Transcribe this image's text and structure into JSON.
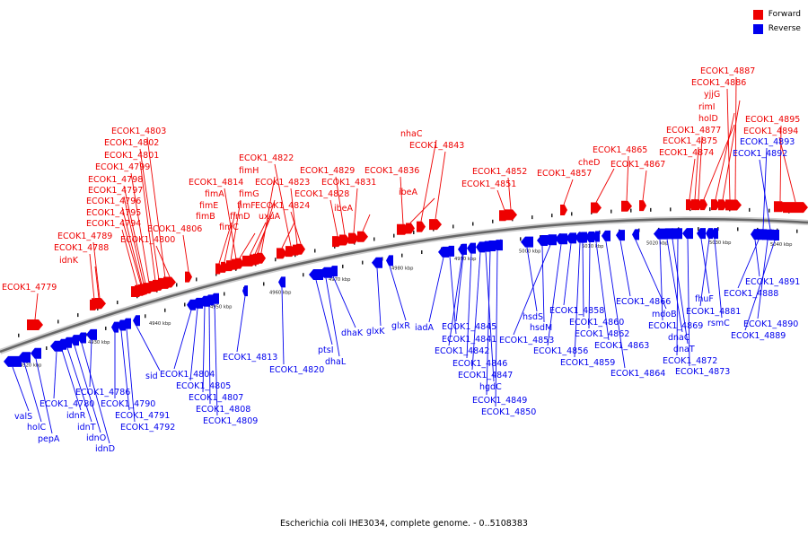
{
  "colors": {
    "forward": "#ee0000",
    "reverse": "#0000ee",
    "axis": "#666666"
  },
  "legend": [
    {
      "label": "Forward",
      "color": "#ee0000"
    },
    {
      "label": "Reverse",
      "color": "#0000ee"
    }
  ],
  "caption": "Escherichia coli IHE3034, complete genome. - 0..5108383",
  "scale": {
    "ticks": [
      "4920 kbp",
      "4930 kbp",
      "4940 kbp",
      "4950 kbp",
      "4960 kbp",
      "4970 kbp",
      "4980 kbp",
      "4990 kbp",
      "5000 kbp",
      "5010 kbp",
      "5020 kbp",
      "5030 kbp",
      "5040 kbp"
    ]
  },
  "forward_genes": [
    {
      "label": "ECOK1_4779"
    },
    {
      "label": "idnK"
    },
    {
      "label": "ECOK1_4788"
    },
    {
      "label": "ECOK1_4789"
    },
    {
      "label": "ECOK1_4794"
    },
    {
      "label": "ECOK1_4795"
    },
    {
      "label": "ECOK1_4796"
    },
    {
      "label": "ECOK1_4797"
    },
    {
      "label": "ECOK1_4798"
    },
    {
      "label": "ECOK1_4799"
    },
    {
      "label": "ECOK1_4801"
    },
    {
      "label": "ECOK1_4802"
    },
    {
      "label": "ECOK1_4803"
    },
    {
      "label": "ECOK1_4800"
    },
    {
      "label": "ECOK1_4806"
    },
    {
      "label": "fimB"
    },
    {
      "label": "fimE"
    },
    {
      "label": "fimA"
    },
    {
      "label": "ECOK1_4814"
    },
    {
      "label": "fimC"
    },
    {
      "label": "fimD"
    },
    {
      "label": "fimF"
    },
    {
      "label": "fimG"
    },
    {
      "label": "fimH"
    },
    {
      "label": "uxuA"
    },
    {
      "label": "ECOK1_4822"
    },
    {
      "label": "ECOK1_4823"
    },
    {
      "label": "ECOK1_4824"
    },
    {
      "label": "ECOK1_4828"
    },
    {
      "label": "ECOK1_4829"
    },
    {
      "label": "ECOK1_4831"
    },
    {
      "label": "ibeA"
    },
    {
      "label": "ECOK1_4836"
    },
    {
      "label": "ibeA"
    },
    {
      "label": "nhaC"
    },
    {
      "label": "ECOK1_4843"
    },
    {
      "label": "ECOK1_4851"
    },
    {
      "label": "ECOK1_4852"
    },
    {
      "label": "ECOK1_4857"
    },
    {
      "label": "cheD"
    },
    {
      "label": "ECOK1_4865"
    },
    {
      "label": "ECOK1_4867"
    },
    {
      "label": "ECOK1_4874"
    },
    {
      "label": "ECOK1_4875"
    },
    {
      "label": "ECOK1_4877"
    },
    {
      "label": "holD"
    },
    {
      "label": "rimI"
    },
    {
      "label": "yjjG"
    },
    {
      "label": "ECOK1_4886"
    },
    {
      "label": "ECOK1_4887"
    },
    {
      "label": "ECOK1_4895"
    },
    {
      "label": "ECOK1_4894"
    }
  ],
  "reverse_genes": [
    {
      "label": "valS"
    },
    {
      "label": "holC"
    },
    {
      "label": "pepA"
    },
    {
      "label": "ECOK1_4780"
    },
    {
      "label": "idnR"
    },
    {
      "label": "idnT"
    },
    {
      "label": "idnO"
    },
    {
      "label": "idnD"
    },
    {
      "label": "ECOK1_4786"
    },
    {
      "label": "ECOK1_4790"
    },
    {
      "label": "ECOK1_4791"
    },
    {
      "label": "ECOK1_4792"
    },
    {
      "label": "sid"
    },
    {
      "label": "ECOK1_4804"
    },
    {
      "label": "ECOK1_4805"
    },
    {
      "label": "ECOK1_4807"
    },
    {
      "label": "ECOK1_4808"
    },
    {
      "label": "ECOK1_4809"
    },
    {
      "label": "ECOK1_4813"
    },
    {
      "label": "ECOK1_4820"
    },
    {
      "label": "ptsI"
    },
    {
      "label": "dhaL"
    },
    {
      "label": "dhaK"
    },
    {
      "label": "glxK"
    },
    {
      "label": "glxR"
    },
    {
      "label": "iadA"
    },
    {
      "label": "ECOK1_4841"
    },
    {
      "label": "ECOK1_4842"
    },
    {
      "label": "ECOK1_4845"
    },
    {
      "label": "ECOK1_4846"
    },
    {
      "label": "ECOK1_4847"
    },
    {
      "label": "hgdC"
    },
    {
      "label": "ECOK1_4849"
    },
    {
      "label": "ECOK1_4850"
    },
    {
      "label": "hsdS"
    },
    {
      "label": "hsdM"
    },
    {
      "label": "ECOK1_4853"
    },
    {
      "label": "ECOK1_4856"
    },
    {
      "label": "ECOK1_4858"
    },
    {
      "label": "ECOK1_4859"
    },
    {
      "label": "ECOK1_4860"
    },
    {
      "label": "ECOK1_4862"
    },
    {
      "label": "ECOK1_4863"
    },
    {
      "label": "ECOK1_4864"
    },
    {
      "label": "ECOK1_4866"
    },
    {
      "label": "mdoB"
    },
    {
      "label": "ECOK1_4869"
    },
    {
      "label": "dnaC"
    },
    {
      "label": "dnaT"
    },
    {
      "label": "ECOK1_4872"
    },
    {
      "label": "ECOK1_4873"
    },
    {
      "label": "fhuF"
    },
    {
      "label": "ECOK1_4881"
    },
    {
      "label": "rsmC"
    },
    {
      "label": "ECOK1_4893"
    },
    {
      "label": "ECOK1_4892"
    },
    {
      "label": "ECOK1_4891"
    },
    {
      "label": "ECOK1_4888"
    },
    {
      "label": "ECOK1_4890"
    },
    {
      "label": "ECOK1_4889"
    }
  ]
}
